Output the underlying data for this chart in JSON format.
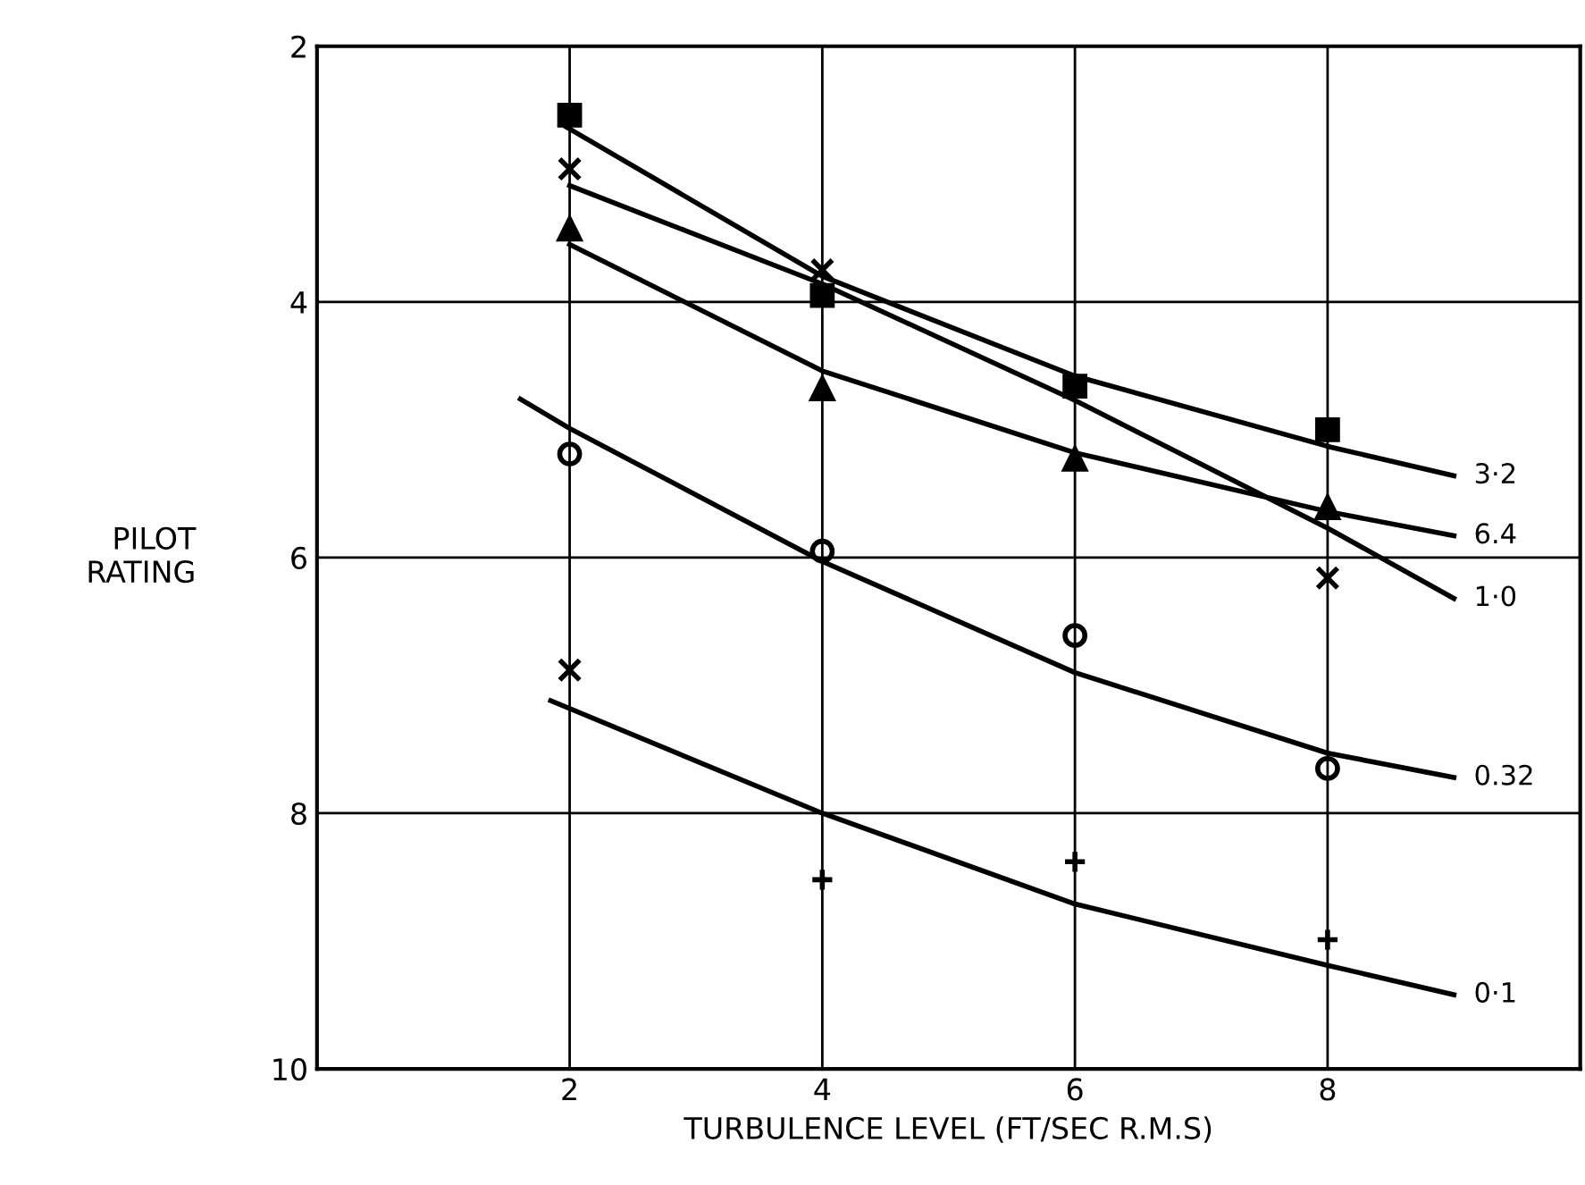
{
  "chart_data": {
    "type": "line",
    "xlabel": "TURBULENCE LEVEL (FT/SEC R.M.S)",
    "ylabel": "PILOT\nRATING",
    "xlim": [
      0,
      10
    ],
    "xticks": [
      2,
      4,
      6,
      8
    ],
    "ylim": [
      10,
      2
    ],
    "yticks": [
      2,
      4,
      6,
      8,
      10
    ],
    "grid": true,
    "legend": false,
    "series": [
      {
        "type": "scatter",
        "marker": "square",
        "color": "#000000",
        "x": [
          2,
          4,
          6,
          8
        ],
        "values": [
          2.54,
          3.95,
          4.66,
          5.0
        ]
      },
      {
        "type": "scatter",
        "marker": "cross",
        "color": "#000000",
        "x": [
          2,
          4,
          8
        ],
        "values": [
          2.96,
          3.75,
          6.16
        ]
      },
      {
        "type": "scatter",
        "marker": "triangle",
        "color": "#000000",
        "x": [
          2,
          4,
          6,
          8
        ],
        "values": [
          3.43,
          4.68,
          5.23,
          5.61
        ]
      },
      {
        "type": "scatter",
        "marker": "circle",
        "color": "#000000",
        "x": [
          2,
          4,
          6,
          8
        ],
        "values": [
          5.19,
          5.95,
          6.61,
          7.65
        ]
      },
      {
        "type": "scatter",
        "marker": "cross",
        "color": "#000000",
        "x": [
          2
        ],
        "values": [
          6.88
        ]
      },
      {
        "type": "scatter",
        "marker": "plus",
        "color": "#000000",
        "x": [
          4,
          6,
          8
        ],
        "values": [
          8.52,
          8.38,
          8.99
        ]
      },
      {
        "name": "3·2",
        "color": "#000000",
        "x": [
          1.97,
          4,
          6,
          8,
          9
        ],
        "values": [
          2.63,
          3.8,
          4.58,
          5.13,
          5.36
        ]
      },
      {
        "name": "6.4",
        "color": "#000000",
        "x": [
          2,
          4,
          6,
          8,
          9
        ],
        "values": [
          3.55,
          4.54,
          5.18,
          5.64,
          5.83
        ]
      },
      {
        "name": "1·0",
        "color": "#000000",
        "x": [
          2,
          4,
          6,
          8,
          9
        ],
        "values": [
          3.09,
          3.86,
          4.77,
          5.77,
          6.32
        ]
      },
      {
        "name": "0.32",
        "color": "#000000",
        "x": [
          1.61,
          2,
          4,
          6,
          8,
          9
        ],
        "values": [
          4.76,
          4.99,
          6.03,
          6.9,
          7.53,
          7.72
        ]
      },
      {
        "name": "0·1",
        "color": "#000000",
        "x": [
          1.85,
          4,
          6,
          8,
          9
        ],
        "values": [
          7.12,
          8.0,
          8.71,
          9.19,
          9.42
        ]
      }
    ]
  }
}
